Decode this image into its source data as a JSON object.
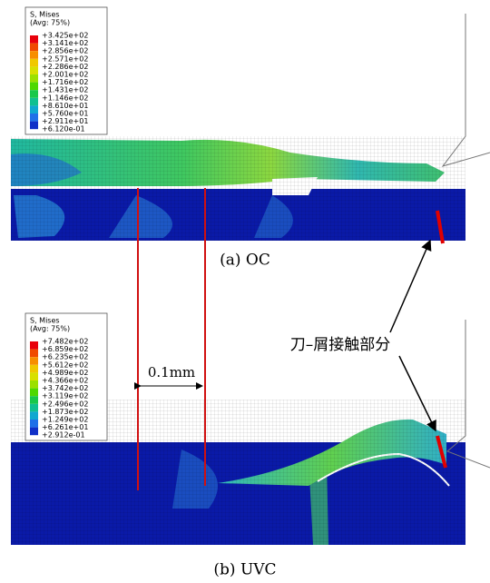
{
  "panels": [
    {
      "legend": {
        "title": "S, Mises",
        "subtitle": "(Avg: 75%)",
        "values": [
          "+3.425e+02",
          "+3.141e+02",
          "+2.856e+02",
          "+2.571e+02",
          "+2.286e+02",
          "+2.001e+02",
          "+1.716e+02",
          "+1.431e+02",
          "+1.146e+02",
          "+8.610e+01",
          "+5.760e+01",
          "+2.911e+01",
          "+6.120e-01"
        ]
      },
      "caption": "(a)  OC"
    },
    {
      "legend": {
        "title": "S, Mises",
        "subtitle": "(Avg: 75%)",
        "values": [
          "+7.482e+02",
          "+6.859e+02",
          "+6.235e+02",
          "+5.612e+02",
          "+4.989e+02",
          "+4.366e+02",
          "+3.742e+02",
          "+3.119e+02",
          "+2.496e+02",
          "+1.873e+02",
          "+1.249e+02",
          "+6.261e+01",
          "+2.912e-01"
        ]
      },
      "caption": "(b)  UVC"
    }
  ],
  "legend_colors": [
    "#e8000b",
    "#f04a00",
    "#f78e00",
    "#f0c800",
    "#d8e000",
    "#9be000",
    "#4ed800",
    "#18c84a",
    "#10c090",
    "#10a8d0",
    "#2070e8",
    "#1030c8"
  ],
  "annotation": "刀–屑接触部分",
  "dimension": "0.1mm"
}
